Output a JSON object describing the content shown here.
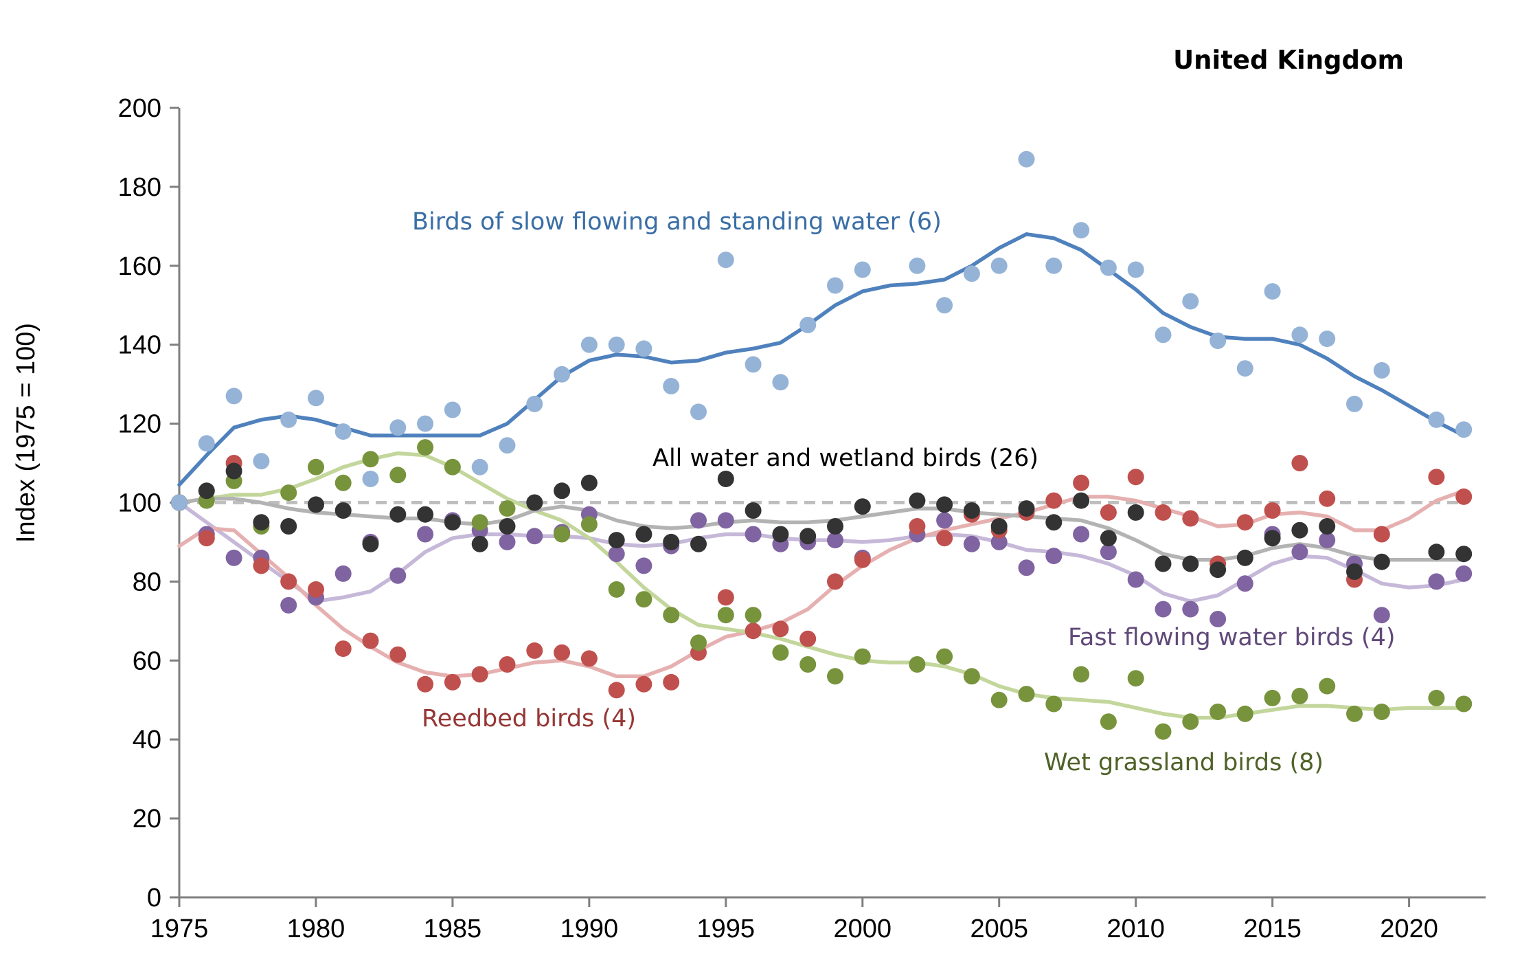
{
  "chart_data": {
    "type": "scatter",
    "title": "United Kingdom",
    "xlabel": "",
    "ylabel": "Index (1975 = 100)",
    "xlim": [
      1975,
      2022.8
    ],
    "ylim": [
      0,
      200
    ],
    "x_ticks": [
      1975,
      1980,
      1985,
      1990,
      1995,
      2000,
      2005,
      2010,
      2015,
      2020
    ],
    "y_ticks": [
      0,
      20,
      40,
      60,
      80,
      100,
      120,
      140,
      160,
      180,
      200
    ],
    "baseline": 100,
    "series": [
      {
        "name": "Fast flowing water birds (4)",
        "point_color": "#8064a2",
        "line_color": "#c6b8d8",
        "x": [
          1975,
          1976,
          1977,
          1978,
          1979,
          1980,
          1981,
          1982,
          1983,
          1984,
          1985,
          1986,
          1987,
          1988,
          1989,
          1990,
          1991,
          1992,
          1993,
          1994,
          1995,
          1996,
          1997,
          1998,
          1999,
          2000,
          2002,
          2003,
          2004,
          2005,
          2006,
          2007,
          2008,
          2009,
          2010,
          2011,
          2012,
          2013,
          2014,
          2015,
          2016,
          2017,
          2018,
          2019,
          2021,
          2022
        ],
        "values": [
          100,
          92,
          86,
          86,
          74,
          76,
          82,
          90,
          81.5,
          92,
          95.5,
          93,
          90,
          91.5,
          92.5,
          97,
          87,
          84,
          89,
          95.5,
          95.5,
          92,
          89.5,
          90,
          90.5,
          86,
          92,
          95.5,
          89.5,
          90,
          83.5,
          86.5,
          92,
          87.5,
          80.5,
          73,
          73,
          70.5,
          79.5,
          92,
          87.5,
          90.5,
          84.5,
          71.5,
          80,
          82
        ],
        "trend_x": [
          1975,
          1976,
          1977,
          1978,
          1979,
          1980,
          1981,
          1982,
          1983,
          1984,
          1985,
          1986,
          1987,
          1988,
          1989,
          1990,
          1991,
          1992,
          1993,
          1994,
          1995,
          1996,
          1997,
          1998,
          1999,
          2000,
          2001,
          2002,
          2003,
          2004,
          2005,
          2006,
          2007,
          2008,
          2009,
          2010,
          2011,
          2012,
          2013,
          2014,
          2015,
          2016,
          2017,
          2018,
          2019,
          2020,
          2021,
          2022
        ],
        "trend_values": [
          100,
          95,
          90,
          85,
          80,
          75,
          76,
          77.5,
          82,
          87.5,
          91,
          92,
          92,
          91.5,
          91.5,
          91,
          89.5,
          89,
          89.5,
          91,
          92,
          92,
          91,
          90.5,
          90.5,
          90,
          90.5,
          91.5,
          92,
          91.5,
          90,
          88,
          87.5,
          86.5,
          84.5,
          81.5,
          77,
          75,
          76.5,
          80.5,
          84.5,
          86.5,
          86,
          83,
          79.5,
          78.5,
          79,
          80.5
        ]
      },
      {
        "name": "Reedbed birds (4)",
        "point_color": "#c0504d",
        "line_color": "#e6b0b0",
        "x": [
          1975,
          1976,
          1977,
          1978,
          1979,
          1980,
          1981,
          1982,
          1983,
          1984,
          1985,
          1986,
          1987,
          1988,
          1989,
          1990,
          1991,
          1992,
          1993,
          1994,
          1995,
          1996,
          1997,
          1998,
          1999,
          2000,
          2002,
          2003,
          2004,
          2005,
          2006,
          2007,
          2008,
          2009,
          2010,
          2011,
          2012,
          2013,
          2014,
          2015,
          2016,
          2017,
          2018,
          2019,
          2021,
          2022
        ],
        "values": [
          100,
          91,
          110,
          84,
          80,
          78,
          63,
          65,
          61.5,
          54,
          54.5,
          56.5,
          59,
          62.5,
          62,
          60.5,
          52.5,
          54,
          54.5,
          62,
          76,
          67.5,
          68,
          65.5,
          80,
          85.5,
          94,
          91,
          97,
          93,
          97.5,
          100.5,
          105,
          97.5,
          106.5,
          97.5,
          96,
          84.5,
          95,
          98,
          110,
          101,
          80.5,
          92,
          106.5,
          101.5
        ],
        "trend_x": [
          1975,
          1976,
          1977,
          1978,
          1979,
          1980,
          1981,
          1982,
          1983,
          1984,
          1985,
          1986,
          1987,
          1988,
          1989,
          1990,
          1991,
          1992,
          1993,
          1994,
          1995,
          1996,
          1997,
          1998,
          1999,
          2000,
          2001,
          2002,
          2003,
          2004,
          2005,
          2006,
          2007,
          2008,
          2009,
          2010,
          2011,
          2012,
          2013,
          2014,
          2015,
          2016,
          2017,
          2018,
          2019,
          2020,
          2021,
          2022
        ],
        "trend_values": [
          89,
          93.5,
          93,
          87,
          81,
          74,
          68,
          63.5,
          59.5,
          57,
          56,
          56.5,
          58,
          59.5,
          60,
          58.5,
          56,
          56,
          58.5,
          62.5,
          66,
          67.5,
          69.5,
          73,
          79,
          84,
          88,
          91,
          93,
          94.5,
          96,
          97.5,
          99.5,
          101.5,
          101.5,
          100.5,
          98.5,
          96.5,
          94,
          94.5,
          97,
          97.5,
          96.5,
          93,
          93,
          96,
          100.5,
          103
        ]
      },
      {
        "name": "Wet grassland birds (8)",
        "point_color": "#77933c",
        "line_color": "#c3d69b",
        "x": [
          1975,
          1976,
          1977,
          1978,
          1979,
          1980,
          1981,
          1982,
          1983,
          1984,
          1985,
          1986,
          1987,
          1988,
          1989,
          1990,
          1991,
          1992,
          1993,
          1994,
          1995,
          1996,
          1997,
          1998,
          1999,
          2000,
          2002,
          2003,
          2004,
          2005,
          2006,
          2007,
          2008,
          2009,
          2010,
          2011,
          2012,
          2013,
          2014,
          2015,
          2016,
          2017,
          2018,
          2019,
          2021,
          2022
        ],
        "values": [
          100,
          100.5,
          105.5,
          94,
          102.5,
          109,
          105,
          111,
          107,
          114,
          109,
          95,
          98.5,
          100,
          92,
          94.5,
          78,
          75.5,
          71.5,
          64.5,
          71.5,
          71.5,
          62,
          59,
          56,
          61,
          59,
          61,
          56,
          50,
          51.5,
          49,
          56.5,
          44.5,
          55.5,
          42,
          44.5,
          47,
          46.5,
          50.5,
          51,
          53.5,
          46.5,
          47,
          50.5,
          49
        ],
        "trend_x": [
          1975,
          1976,
          1977,
          1978,
          1979,
          1980,
          1981,
          1982,
          1983,
          1984,
          1985,
          1986,
          1987,
          1988,
          1989,
          1990,
          1991,
          1992,
          1993,
          1994,
          1995,
          1996,
          1997,
          1998,
          1999,
          2000,
          2001,
          2002,
          2003,
          2004,
          2005,
          2006,
          2007,
          2008,
          2009,
          2010,
          2011,
          2012,
          2013,
          2014,
          2015,
          2016,
          2017,
          2018,
          2019,
          2020,
          2021,
          2022
        ],
        "trend_values": [
          100,
          101,
          102,
          102,
          103.5,
          106,
          109,
          111,
          112.5,
          112,
          109,
          105,
          101,
          98,
          95.5,
          91,
          85,
          78.5,
          73,
          69,
          68,
          67,
          65.5,
          63.5,
          61.5,
          60,
          59.5,
          59.5,
          58.5,
          56.5,
          53.5,
          51.5,
          50.5,
          50,
          49.5,
          48,
          46.5,
          45.5,
          45.5,
          46.5,
          47.5,
          48.5,
          48.5,
          48,
          47.5,
          48,
          48,
          48
        ]
      },
      {
        "name": "All water and wetland birds (26)",
        "point_color": "#333333",
        "line_color": "#b3b3b3",
        "x": [
          1975,
          1976,
          1977,
          1978,
          1979,
          1980,
          1981,
          1982,
          1983,
          1984,
          1985,
          1986,
          1987,
          1988,
          1989,
          1990,
          1991,
          1992,
          1993,
          1994,
          1995,
          1996,
          1997,
          1998,
          1999,
          2000,
          2002,
          2003,
          2004,
          2005,
          2006,
          2007,
          2008,
          2009,
          2010,
          2011,
          2012,
          2013,
          2014,
          2015,
          2016,
          2017,
          2018,
          2019,
          2021,
          2022
        ],
        "values": [
          100,
          103,
          108,
          95,
          94,
          99.5,
          98,
          89.5,
          97,
          97,
          95,
          89.5,
          94,
          100,
          103,
          105,
          90.5,
          92,
          90,
          89.5,
          106,
          98,
          92,
          91.5,
          94,
          99,
          100.5,
          99.5,
          98,
          94,
          98.5,
          95,
          100.5,
          91,
          97.5,
          84.5,
          84.5,
          83,
          86,
          91,
          93,
          94,
          82.5,
          85,
          87.5,
          87
        ],
        "trend_x": [
          1975,
          1976,
          1977,
          1978,
          1979,
          1980,
          1981,
          1982,
          1983,
          1984,
          1985,
          1986,
          1987,
          1988,
          1989,
          1990,
          1991,
          1992,
          1993,
          1994,
          1995,
          1996,
          1997,
          1998,
          1999,
          2000,
          2001,
          2002,
          2003,
          2004,
          2005,
          2006,
          2007,
          2008,
          2009,
          2010,
          2011,
          2012,
          2013,
          2014,
          2015,
          2016,
          2017,
          2018,
          2019,
          2020,
          2021,
          2022
        ],
        "trend_values": [
          100,
          101,
          101,
          100,
          98.5,
          97.5,
          97,
          96.5,
          96,
          96,
          95,
          94.5,
          95.5,
          98,
          99,
          98,
          95.5,
          94,
          93.5,
          94,
          95,
          95.5,
          95,
          95,
          95.5,
          96.5,
          97.5,
          98.5,
          98.5,
          97.5,
          97,
          96.5,
          96,
          95.5,
          93.5,
          90.5,
          87,
          85.5,
          85.5,
          86.5,
          88.5,
          89.5,
          88.5,
          86.5,
          85.5,
          85.5,
          85.5,
          85.5
        ]
      },
      {
        "name": "Birds of slow flowing and standing water (6)",
        "point_color": "#95b3d7",
        "line_color": "#4f81bd",
        "x": [
          1975,
          1976,
          1977,
          1978,
          1979,
          1980,
          1981,
          1982,
          1983,
          1984,
          1985,
          1986,
          1987,
          1988,
          1989,
          1990,
          1991,
          1992,
          1993,
          1994,
          1995,
          1996,
          1997,
          1998,
          1999,
          2000,
          2002,
          2003,
          2004,
          2005,
          2006,
          2007,
          2008,
          2009,
          2010,
          2011,
          2012,
          2013,
          2014,
          2015,
          2016,
          2017,
          2018,
          2019,
          2021,
          2022
        ],
        "values": [
          100,
          115,
          127,
          110.5,
          121,
          126.5,
          118,
          106,
          119,
          120,
          123.5,
          109,
          114.5,
          125,
          132.5,
          140,
          140,
          139,
          129.5,
          123,
          161.5,
          135,
          130.5,
          145,
          155,
          159,
          160,
          150,
          158,
          160,
          187,
          160,
          169,
          159.5,
          159,
          142.5,
          151,
          141,
          134,
          153.5,
          142.5,
          141.5,
          125,
          133.5,
          121,
          118.5
        ],
        "trend_x": [
          1975,
          1976,
          1977,
          1978,
          1979,
          1980,
          1981,
          1982,
          1983,
          1984,
          1985,
          1986,
          1987,
          1988,
          1989,
          1990,
          1991,
          1992,
          1993,
          1994,
          1995,
          1996,
          1997,
          1998,
          1999,
          2000,
          2001,
          2002,
          2003,
          2004,
          2005,
          2006,
          2007,
          2008,
          2009,
          2010,
          2011,
          2012,
          2013,
          2014,
          2015,
          2016,
          2017,
          2018,
          2019,
          2020,
          2021,
          2022
        ],
        "trend_values": [
          104.5,
          112,
          119,
          121,
          122,
          121,
          119,
          117,
          117,
          117,
          117,
          117,
          120,
          126,
          132,
          136,
          137.5,
          137,
          135.5,
          136,
          138,
          139,
          140.5,
          145,
          150,
          153.5,
          155,
          155.5,
          156.5,
          160,
          164.5,
          168,
          167,
          164,
          159,
          154,
          148,
          144.5,
          142,
          141.5,
          141.5,
          140,
          136.5,
          132,
          128.5,
          124.5,
          120.5,
          117
        ]
      }
    ],
    "labels": [
      {
        "text": "Birds of slow flowing and standing water (6)",
        "color": "#3a6ea5"
      },
      {
        "text": "All water and wetland birds (26)",
        "color": "#000000"
      },
      {
        "text": "Fast flowing water birds (4)",
        "color": "#60497a"
      },
      {
        "text": "Reedbed birds (4)",
        "color": "#953735"
      },
      {
        "text": "Wet grassland birds (8)",
        "color": "#4f6228"
      }
    ]
  }
}
